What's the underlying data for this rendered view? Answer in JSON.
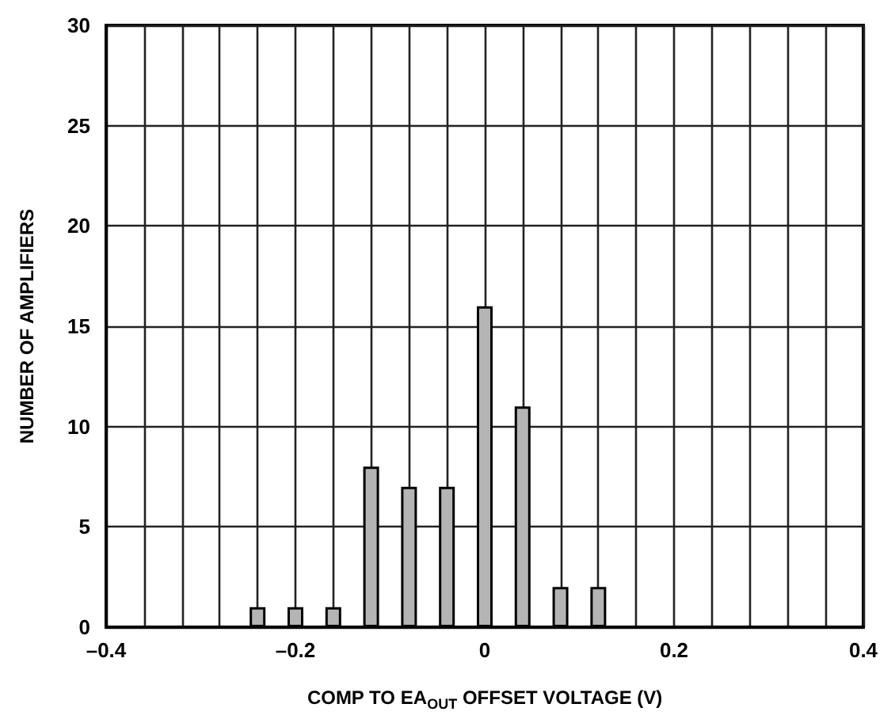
{
  "chart_data": {
    "type": "bar",
    "xlabel": "COMP TO EA$_{OUT}$ OFFSET VOLTAGE (V)",
    "ylabel": "NUMBER OF AMPLIFIERS",
    "x": [
      -0.24,
      -0.2,
      -0.16,
      -0.12,
      -0.08,
      -0.04,
      0,
      0.04,
      0.08,
      0.12
    ],
    "values": [
      1,
      1,
      1,
      8,
      7,
      7,
      16,
      11,
      2,
      2
    ],
    "color": "#b4b4b4",
    "xlim": [
      -0.4,
      0.4
    ],
    "xticks": [
      {
        "value": -0.4,
        "label": "–0.4"
      },
      {
        "value": -0.36,
        "label": null
      },
      {
        "value": -0.32,
        "label": null
      },
      {
        "value": -0.28,
        "label": null
      },
      {
        "value": -0.24,
        "label": null
      },
      {
        "value": -0.2,
        "label": "–0.2"
      },
      {
        "value": -0.16,
        "label": null
      },
      {
        "value": -0.12,
        "label": null
      },
      {
        "value": -0.08,
        "label": null
      },
      {
        "value": -0.04,
        "label": null
      },
      0,
      {
        "value": 0.04,
        "label": null
      },
      {
        "value": 0.08,
        "label": null
      },
      {
        "value": 0.12,
        "label": null
      },
      {
        "value": 0.16,
        "label": null
      },
      0.2,
      {
        "value": 0.24,
        "label": null
      },
      {
        "value": 0.28,
        "label": null
      },
      {
        "value": 0.32,
        "label": null
      },
      {
        "value": 0.36,
        "label": null
      },
      0.4
    ],
    "ylim": [
      0,
      30
    ],
    "yticks": [
      0,
      5,
      10,
      15,
      20,
      25,
      30
    ],
    "grid": true
  }
}
